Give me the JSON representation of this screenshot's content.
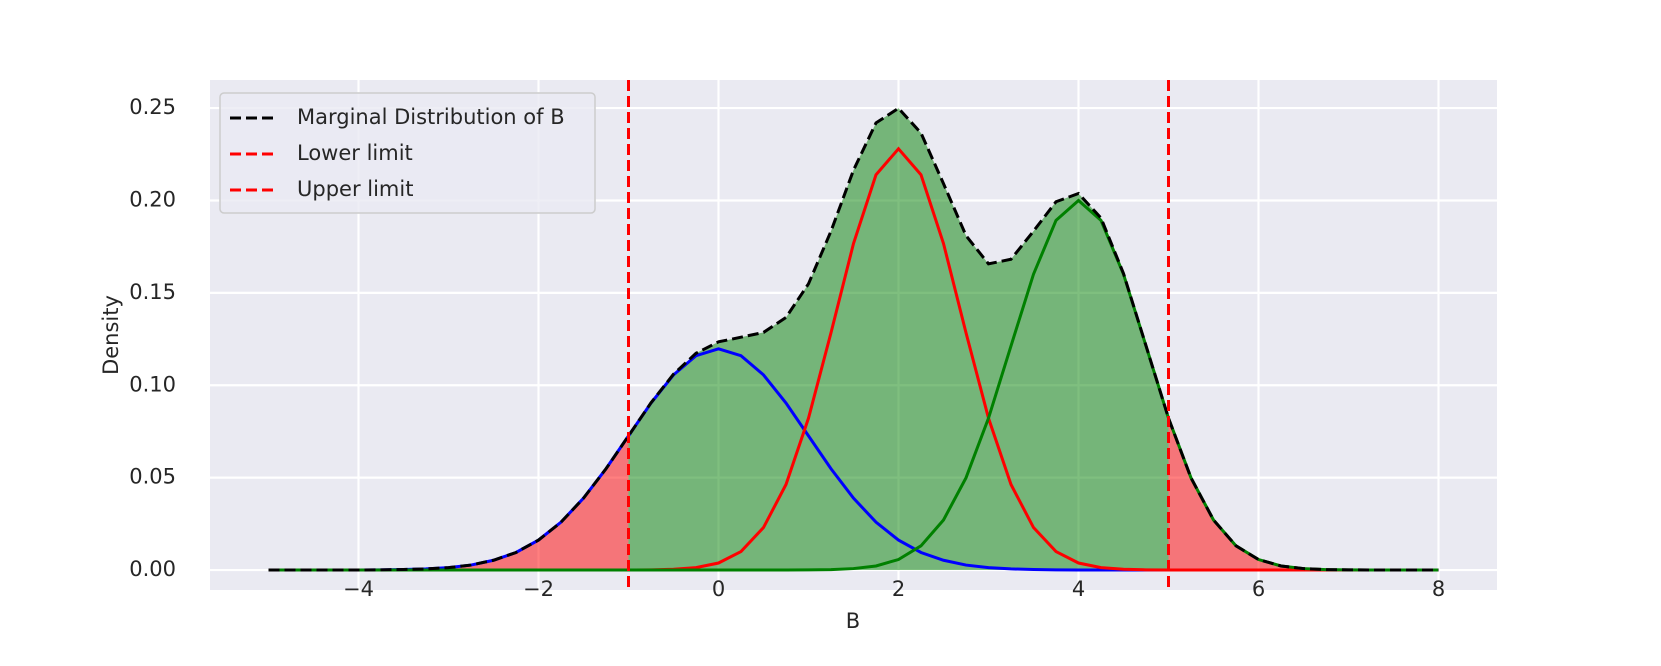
{
  "chart_data": {
    "type": "line",
    "xlabel": "B",
    "ylabel": "Density",
    "x": [
      -5,
      -4.75,
      -4.5,
      -4.25,
      -4,
      -3.75,
      -3.5,
      -3.25,
      -3,
      -2.75,
      -2.5,
      -2.25,
      -2,
      -1.75,
      -1.5,
      -1.25,
      -1,
      -0.75,
      -0.5,
      -0.25,
      0,
      0.25,
      0.5,
      0.75,
      1,
      1.25,
      1.5,
      1.75,
      2,
      2.25,
      2.5,
      2.75,
      3,
      3.25,
      3.5,
      3.75,
      4,
      4.25,
      4.5,
      4.75,
      5,
      5.25,
      5.5,
      5.75,
      6,
      6.25,
      6.5,
      6.75,
      7,
      7.25,
      7.5,
      7.75,
      8
    ],
    "series": [
      {
        "name": "Marginal Distribution of B",
        "color": "#000000",
        "dash": true,
        "values": [
          0,
          0,
          0,
          0,
          0,
          0.0001,
          0.0003,
          0.0006,
          0.0013,
          0.0027,
          0.0053,
          0.0095,
          0.0162,
          0.0259,
          0.0389,
          0.0548,
          0.0726,
          0.0905,
          0.106,
          0.1173,
          0.1235,
          0.126,
          0.1286,
          0.1367,
          0.1549,
          0.1834,
          0.2164,
          0.242,
          0.2499,
          0.2365,
          0.2091,
          0.181,
          0.1657,
          0.1682,
          0.1834,
          0.1993,
          0.2038,
          0.1905,
          0.1605,
          0.1214,
          0.0822,
          0.0499,
          0.0271,
          0.0131,
          0.0057,
          0.0022,
          0.0008,
          0.0002,
          0.0001,
          0,
          0,
          0,
          0
        ]
      },
      {
        "color": "#0000ff",
        "values": [
          0,
          0,
          0,
          0,
          0,
          0.0001,
          0.0003,
          0.0006,
          0.0013,
          0.0027,
          0.0053,
          0.0095,
          0.0162,
          0.0259,
          0.0389,
          0.0548,
          0.0726,
          0.0904,
          0.1056,
          0.116,
          0.1197,
          0.116,
          0.1056,
          0.0904,
          0.0726,
          0.0548,
          0.0389,
          0.0259,
          0.0162,
          0.0095,
          0.0053,
          0.0027,
          0.0013,
          0.0006,
          0.0003,
          0.0001,
          0,
          0,
          0,
          0,
          0,
          0,
          0,
          0,
          0,
          0,
          0,
          0,
          0,
          0,
          0,
          0,
          0
        ]
      },
      {
        "color": "#ff0000",
        "values": [
          0,
          0,
          0,
          0,
          0,
          0,
          0,
          0,
          0,
          0,
          0,
          0,
          0,
          0,
          0,
          0,
          0,
          0.0001,
          0.0004,
          0.0013,
          0.0038,
          0.01,
          0.023,
          0.0463,
          0.0822,
          0.1284,
          0.1767,
          0.2139,
          0.228,
          0.2139,
          0.1767,
          0.1284,
          0.0822,
          0.0463,
          0.023,
          0.01,
          0.0038,
          0.0013,
          0.0004,
          0.0001,
          0,
          0,
          0,
          0,
          0,
          0,
          0,
          0,
          0,
          0,
          0,
          0,
          0
        ]
      },
      {
        "color": "#008000",
        "values": [
          0,
          0,
          0,
          0,
          0,
          0,
          0,
          0,
          0,
          0,
          0,
          0,
          0,
          0,
          0,
          0,
          0,
          0,
          0,
          0,
          0,
          0,
          0,
          0,
          0.0001,
          0.0002,
          0.0008,
          0.0022,
          0.0057,
          0.0131,
          0.0271,
          0.0499,
          0.0822,
          0.1213,
          0.1601,
          0.1892,
          0.2,
          0.1892,
          0.1601,
          0.1213,
          0.0822,
          0.0499,
          0.0271,
          0.0131,
          0.0057,
          0.0022,
          0.0008,
          0.0002,
          0.0001,
          0,
          0,
          0,
          0
        ]
      }
    ],
    "vlines": [
      {
        "name": "Lower limit",
        "x": -1,
        "color": "#ff0000"
      },
      {
        "name": "Upper limit",
        "x": 5,
        "color": "#ff0000"
      }
    ],
    "fill": {
      "inside_color": "#008000",
      "outside_color": "#ff0000",
      "opacity": 0.5
    },
    "xlim": [
      -5.65,
      8.65
    ],
    "ylim": [
      -0.0108,
      0.2652
    ],
    "xticks": [
      {
        "value": -4,
        "label": "−4"
      },
      {
        "value": -2,
        "label": "−2"
      },
      0,
      2,
      4,
      6,
      8
    ],
    "yticks": [
      {
        "value": 0,
        "label": "0.00"
      },
      {
        "value": 0.05,
        "label": "0.05"
      },
      {
        "value": 0.1,
        "label": "0.10"
      },
      {
        "value": 0.15,
        "label": "0.15"
      },
      {
        "value": 0.2,
        "label": "0.20"
      },
      {
        "value": 0.25,
        "label": "0.25"
      }
    ],
    "grid": true,
    "legend": "upper left"
  }
}
